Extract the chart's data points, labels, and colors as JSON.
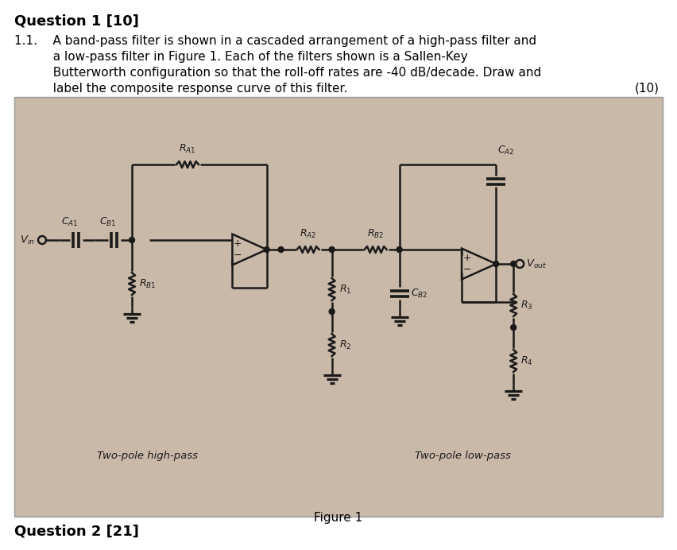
{
  "bg_color": "#c9b9a9",
  "page_bg": "#ffffff",
  "circuit_line_color": "#1a1a1a",
  "title": "Question 1 [10]",
  "footer": "Question 2 [21]",
  "figure_caption": "Figure 1",
  "q_lines": [
    "1.1.    A band-pass filter is shown in a cascaded arrangement of a high-pass filter and",
    "          a low-pass filter in Figure 1. Each of the filters shown is a Sallen-Key",
    "          Butterworth configuration so that the roll-off rates are -40 dB/decade. Draw and",
    "          label the composite response curve of this filter."
  ],
  "marks": "(10)"
}
